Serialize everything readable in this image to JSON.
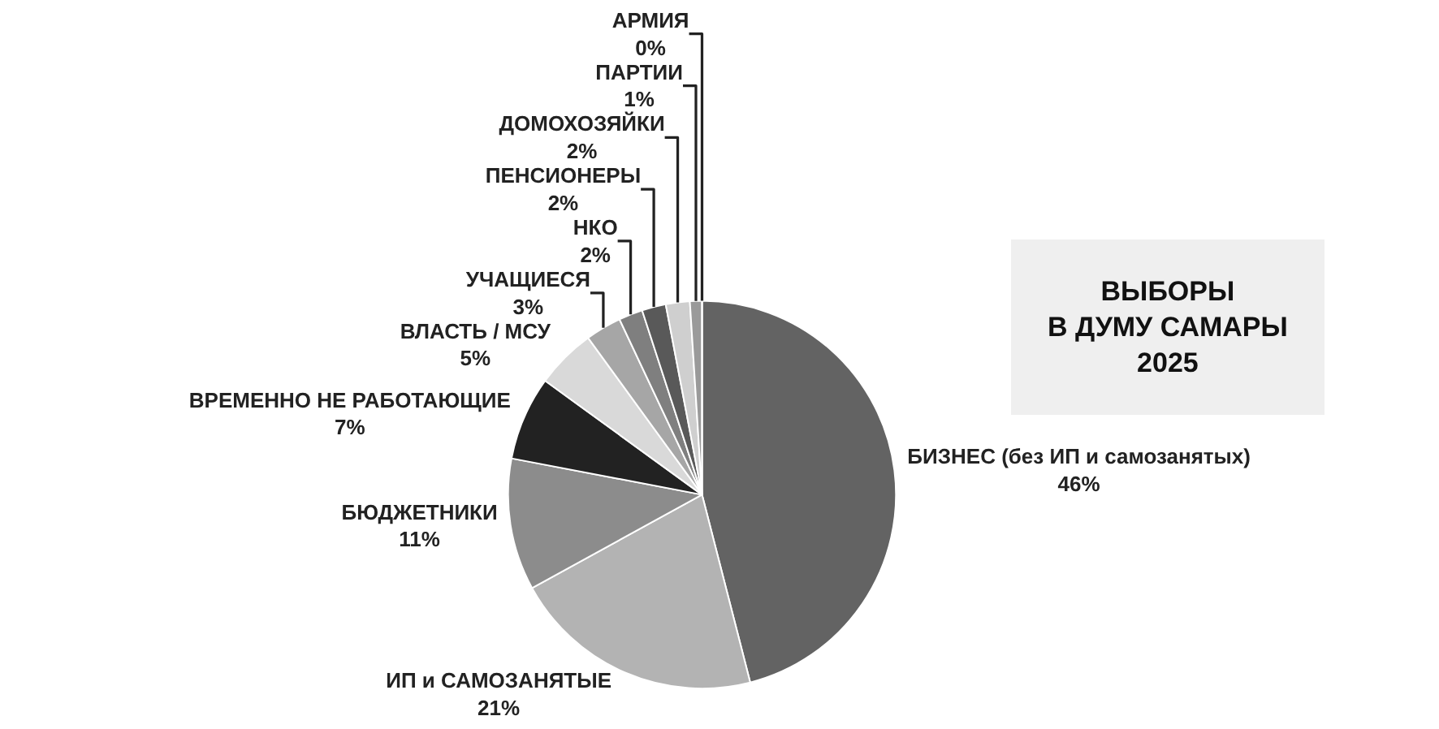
{
  "chart_data": {
    "type": "pie",
    "title": "ВЫБОРЫ\nВ ДУМУ САМАРЫ\n2025",
    "categories": [
      "БИЗНЕС (без ИП и самозанятых)",
      "ИП и САМОЗАНЯТЫЕ",
      "БЮДЖЕТНИКИ",
      "ВРЕМЕННО НЕ РАБОТАЮЩИЕ",
      "ВЛАСТЬ / МСУ",
      "УЧАЩИЕСЯ",
      "НКО",
      "ПЕНСИОНЕРЫ",
      "ДОМОХОЗЯЙКИ",
      "ПАРТИИ",
      "АРМИЯ"
    ],
    "values": [
      46,
      21,
      11,
      7,
      5,
      3,
      2,
      2,
      2,
      1,
      0
    ],
    "value_labels": [
      "46%",
      "21%",
      "11%",
      "7%",
      "5%",
      "3%",
      "2%",
      "2%",
      "2%",
      "1%",
      "0%"
    ],
    "colors": [
      "#636363",
      "#b3b3b3",
      "#8c8c8c",
      "#222222",
      "#d9d9d9",
      "#a6a6a6",
      "#7f7f7f",
      "#595959",
      "#cfcfcf",
      "#9a9a9a",
      "#1a1a1a"
    ],
    "legend": false
  }
}
